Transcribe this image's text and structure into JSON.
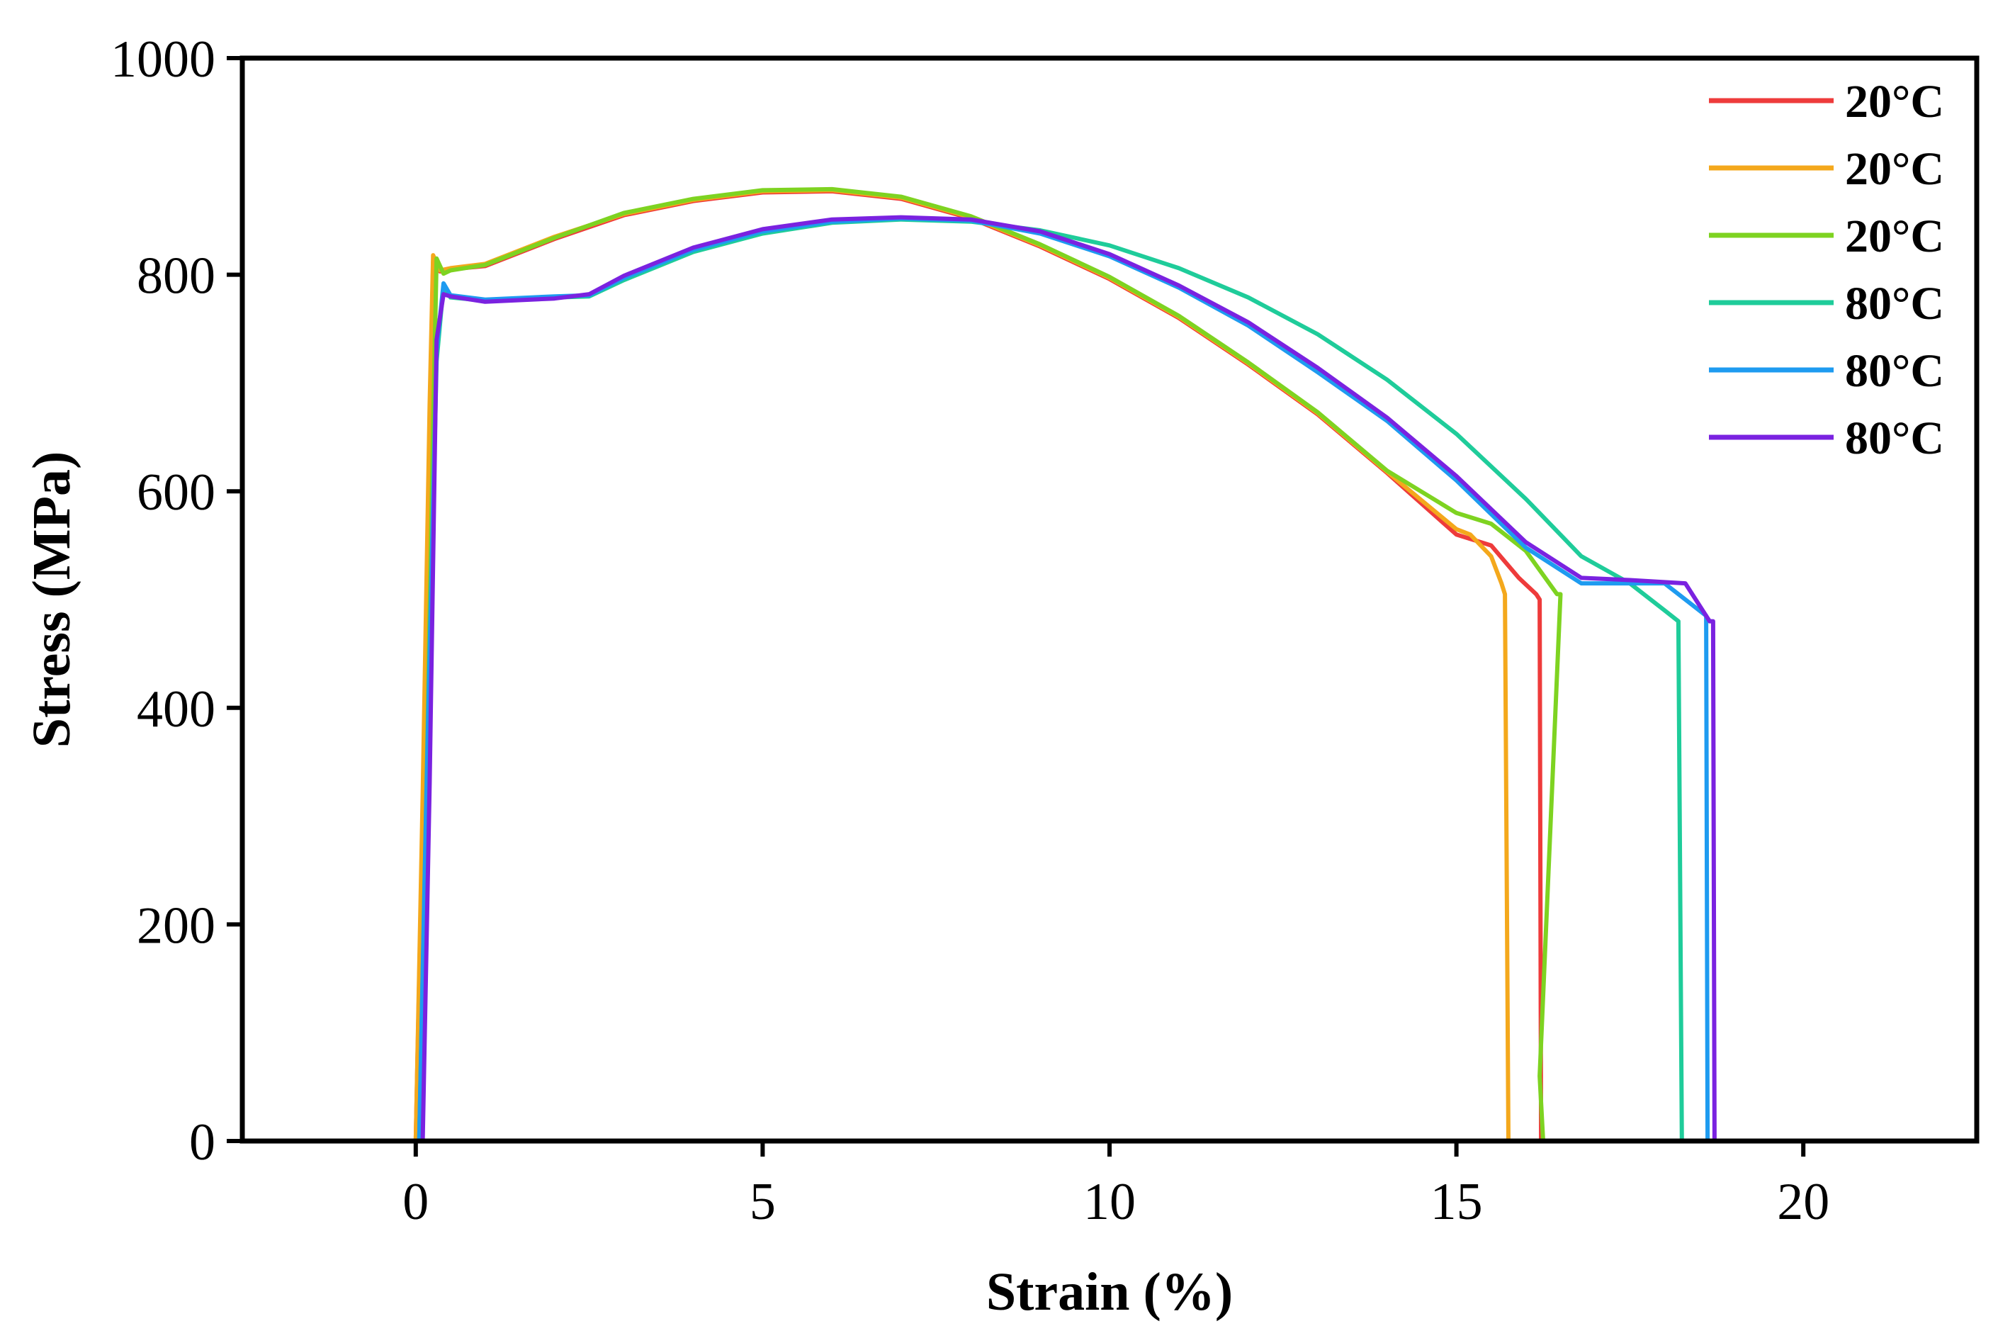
{
  "chart_data": {
    "type": "line",
    "title": "",
    "xlabel": "Strain (%)",
    "ylabel": "Stress (MPa)",
    "xlim": [
      -2.5,
      22.5
    ],
    "ylim": [
      0,
      1000
    ],
    "xticks": [
      0,
      5,
      10,
      15,
      20
    ],
    "yticks": [
      0,
      200,
      400,
      600,
      800,
      1000
    ],
    "grid": false,
    "legend_position": "top-right",
    "series": [
      {
        "name": "20°C",
        "color": "#ee3b3b",
        "x": [
          0.0,
          0.1,
          0.2,
          0.25,
          0.35,
          0.5,
          1,
          2,
          3,
          4,
          5,
          6,
          7,
          8,
          9,
          10,
          11,
          12,
          13,
          14,
          15,
          15.5,
          15.9,
          16.15,
          16.2,
          16.22,
          16.25
        ],
        "y": [
          0,
          300,
          650,
          812,
          803,
          805,
          808,
          833,
          855,
          868,
          876,
          877,
          870,
          852,
          826,
          796,
          760,
          717,
          671,
          617,
          560,
          550,
          520,
          505,
          500,
          0,
          0
        ]
      },
      {
        "name": "20°C",
        "color": "#f4a81c",
        "x": [
          0.0,
          0.1,
          0.2,
          0.25,
          0.35,
          0.5,
          1,
          2,
          3,
          4,
          5,
          6,
          7,
          8,
          9,
          10,
          11,
          12,
          13,
          14,
          15,
          15.2,
          15.5,
          15.65,
          15.7,
          15.75,
          15.8
        ],
        "y": [
          0,
          320,
          680,
          818,
          804,
          806,
          810,
          835,
          856,
          869,
          877,
          878,
          871,
          853,
          827,
          797,
          761,
          718,
          672,
          618,
          565,
          560,
          540,
          515,
          505,
          0,
          0
        ]
      },
      {
        "name": "20°C",
        "color": "#7ed321",
        "x": [
          0.05,
          0.15,
          0.25,
          0.3,
          0.4,
          0.5,
          1,
          2,
          3,
          4,
          5,
          6,
          7,
          8,
          9,
          10,
          11,
          12,
          13,
          14,
          15,
          15.5,
          16,
          16.45,
          16.5,
          16.2,
          16.25
        ],
        "y": [
          0,
          310,
          660,
          815,
          801,
          804,
          809,
          834,
          857,
          870,
          878,
          879,
          872,
          854,
          828,
          798,
          762,
          719,
          673,
          619,
          580,
          570,
          545,
          505,
          505,
          60,
          0
        ]
      },
      {
        "name": "80°C",
        "color": "#1fcc9a",
        "x": [
          0.05,
          0.15,
          0.3,
          0.4,
          0.5,
          1,
          2,
          2.5,
          3,
          4,
          5,
          6,
          7,
          8,
          9,
          10,
          11,
          12,
          13,
          14,
          15,
          16,
          16.8,
          17.5,
          18.0,
          18.2,
          18.25,
          18.3
        ],
        "y": [
          0,
          300,
          720,
          790,
          779,
          776,
          779,
          780,
          795,
          821,
          838,
          848,
          851,
          849,
          841,
          827,
          806,
          779,
          745,
          703,
          653,
          593,
          540,
          515,
          490,
          480,
          0,
          0
        ]
      },
      {
        "name": "80°C",
        "color": "#1e9bf0",
        "x": [
          0.05,
          0.15,
          0.3,
          0.4,
          0.5,
          1,
          2,
          2.5,
          3,
          4,
          5,
          6,
          7,
          8,
          9,
          10,
          11,
          12,
          13,
          14,
          15,
          16,
          16.8,
          17.5,
          18.0,
          18.6,
          18.62,
          18.7
        ],
        "y": [
          0,
          310,
          730,
          792,
          781,
          777,
          780,
          781,
          797,
          823,
          840,
          849,
          852,
          850,
          838,
          817,
          788,
          753,
          710,
          665,
          610,
          548,
          515,
          515,
          515,
          485,
          0,
          0
        ]
      },
      {
        "name": "80°C",
        "color": "#7a22e0",
        "x": [
          0.1,
          0.2,
          0.3,
          0.4,
          0.5,
          1,
          2,
          2.5,
          3,
          4,
          5,
          6,
          7,
          8,
          9,
          10,
          11,
          12,
          13,
          14,
          15,
          16,
          16.8,
          17.5,
          18.3,
          18.65,
          18.7,
          18.72
        ],
        "y": [
          0,
          330,
          740,
          782,
          780,
          775,
          778,
          782,
          799,
          825,
          842,
          851,
          853,
          851,
          840,
          819,
          790,
          756,
          714,
          668,
          614,
          553,
          520,
          518,
          515,
          480,
          480,
          0
        ]
      }
    ]
  }
}
